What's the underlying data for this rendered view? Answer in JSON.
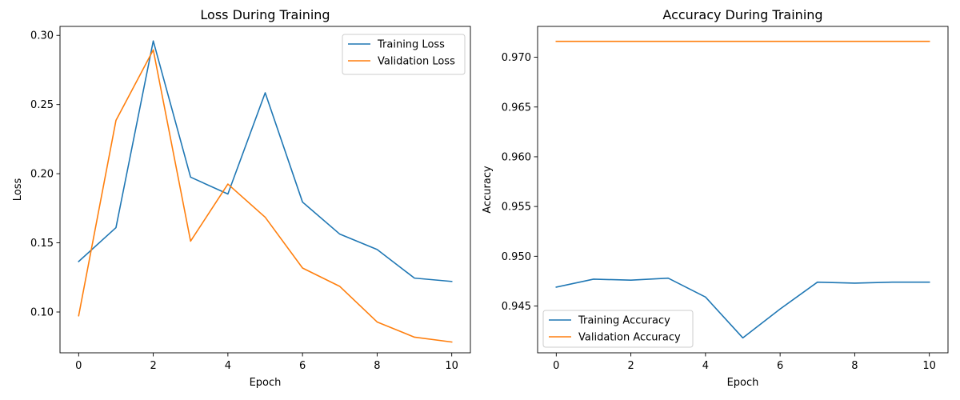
{
  "chart_data": [
    {
      "type": "line",
      "title": "Loss During Training",
      "xlabel": "Epoch",
      "ylabel": "Loss",
      "xlim": [
        -0.5,
        10.5
      ],
      "ylim": [
        0.0705,
        0.3065
      ],
      "xticks": [
        0,
        2,
        4,
        6,
        8,
        10
      ],
      "xtick_labels": [
        "0",
        "2",
        "4",
        "6",
        "8",
        "10"
      ],
      "yticks": [
        0.1,
        0.15,
        0.2,
        0.25,
        0.3
      ],
      "ytick_labels": [
        "0.10",
        "0.15",
        "0.20",
        "0.25",
        "0.30"
      ],
      "legend_position": "upper right",
      "grid": false,
      "x": [
        0,
        1,
        2,
        3,
        4,
        5,
        6,
        7,
        8,
        9,
        10
      ],
      "series": [
        {
          "name": "Training Loss",
          "color": "#1f77b4",
          "values": [
            0.1365,
            0.161,
            0.296,
            0.1975,
            0.1853,
            0.2585,
            0.1795,
            0.1563,
            0.1452,
            0.1245,
            0.1221
          ]
        },
        {
          "name": "Validation Loss",
          "color": "#ff7f0e",
          "values": [
            0.0973,
            0.2385,
            0.2895,
            0.1512,
            0.1925,
            0.1685,
            0.1318,
            0.1185,
            0.0928,
            0.0818,
            0.0783
          ]
        }
      ]
    },
    {
      "type": "line",
      "title": "Accuracy During Training",
      "xlabel": "Epoch",
      "ylabel": "Accuracy",
      "xlim": [
        -0.5,
        10.5
      ],
      "ylim": [
        0.9403,
        0.9731
      ],
      "xticks": [
        0,
        2,
        4,
        6,
        8,
        10
      ],
      "xtick_labels": [
        "0",
        "2",
        "4",
        "6",
        "8",
        "10"
      ],
      "yticks": [
        0.945,
        0.95,
        0.955,
        0.96,
        0.965,
        0.97
      ],
      "ytick_labels": [
        "0.945",
        "0.950",
        "0.955",
        "0.960",
        "0.965",
        "0.970"
      ],
      "legend_position": "lower left",
      "grid": false,
      "x": [
        0,
        1,
        2,
        3,
        4,
        5,
        6,
        7,
        8,
        9,
        10
      ],
      "series": [
        {
          "name": "Training Accuracy",
          "color": "#1f77b4",
          "values": [
            0.9469,
            0.9477,
            0.9476,
            0.9478,
            0.9459,
            0.9418,
            0.9447,
            0.9474,
            0.9473,
            0.9474,
            0.9474
          ]
        },
        {
          "name": "Validation Accuracy",
          "color": "#ff7f0e",
          "values": [
            0.9716,
            0.9716,
            0.9716,
            0.9716,
            0.9716,
            0.9716,
            0.9716,
            0.9716,
            0.9716,
            0.9716,
            0.9716
          ]
        }
      ]
    }
  ]
}
